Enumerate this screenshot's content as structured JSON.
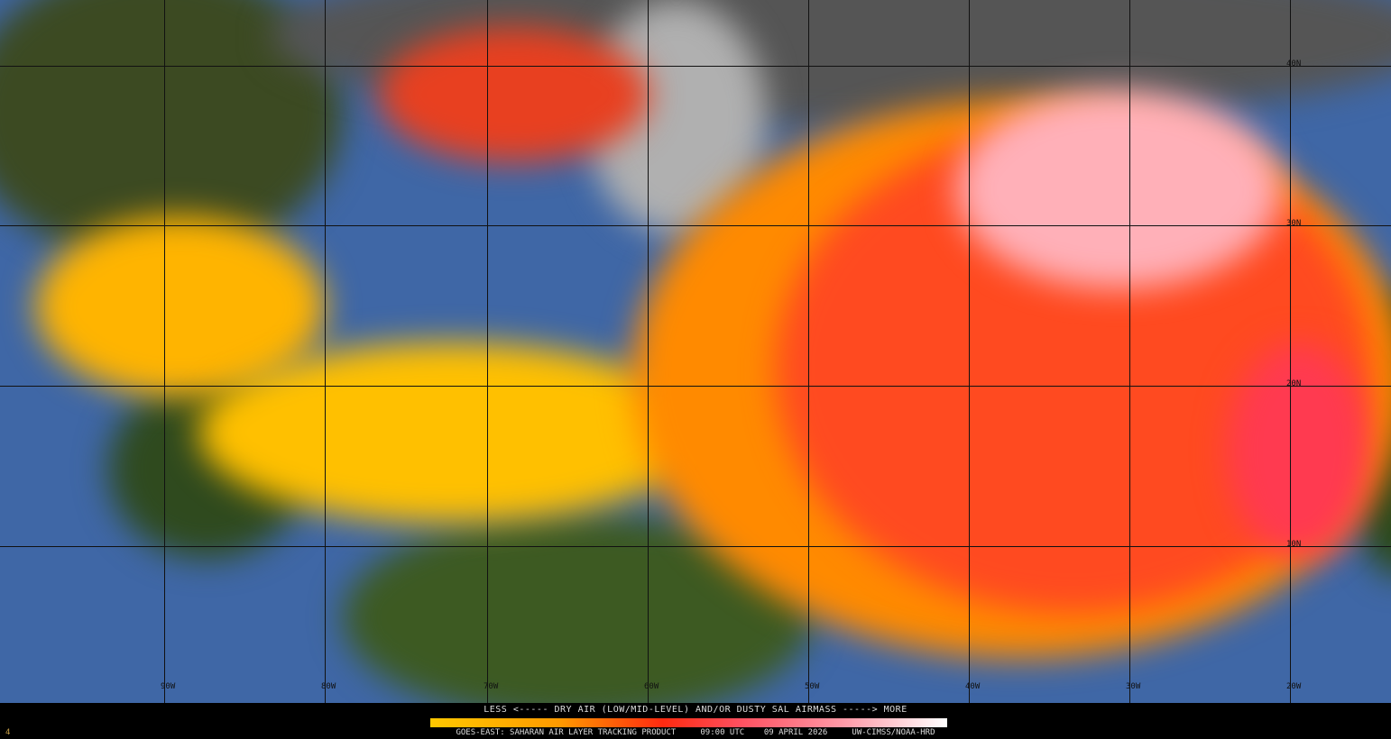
{
  "map": {
    "latitude_labels": [
      "40N",
      "30N",
      "20N",
      "10N"
    ],
    "longitude_labels": [
      "90W",
      "80W",
      "70W",
      "60W",
      "50W",
      "40W",
      "30W",
      "20W"
    ]
  },
  "legend": {
    "title": "LESS <----- DRY AIR (LOW/MID-LEVEL) AND/OR DUSTY SAL AIRMASS -----> MORE",
    "colors": [
      "#ffc800",
      "#ff9a00",
      "#ff2a10",
      "#ff5060",
      "#ff9aa8",
      "#ffffff"
    ]
  },
  "footer": {
    "frame_number": "4",
    "product": "GOES-EAST: SAHARAN AIR LAYER TRACKING PRODUCT",
    "time": "09:00 UTC",
    "date": "09 APRIL 2026",
    "credit": "UW-CIMSS/NOAA-HRD"
  }
}
